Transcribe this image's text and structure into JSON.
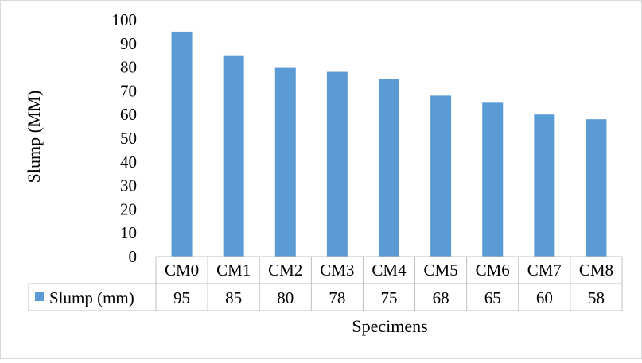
{
  "chart_data": {
    "type": "bar",
    "categories": [
      "CM0",
      "CM1",
      "CM2",
      "CM3",
      "CM4",
      "CM5",
      "CM6",
      "CM7",
      "CM8"
    ],
    "series": [
      {
        "name": "Slump (mm)",
        "values": [
          95,
          85,
          80,
          78,
          75,
          68,
          65,
          60,
          58
        ],
        "color": "#5b9bd5"
      }
    ],
    "ylabel": "Slump (MM)",
    "xlabel": "Specimens",
    "ylim": [
      0,
      100
    ],
    "yticks": [
      0,
      10,
      20,
      30,
      40,
      50,
      60,
      70,
      80,
      90,
      100
    ],
    "grid": false,
    "data_table": true,
    "legend": "data-table"
  }
}
